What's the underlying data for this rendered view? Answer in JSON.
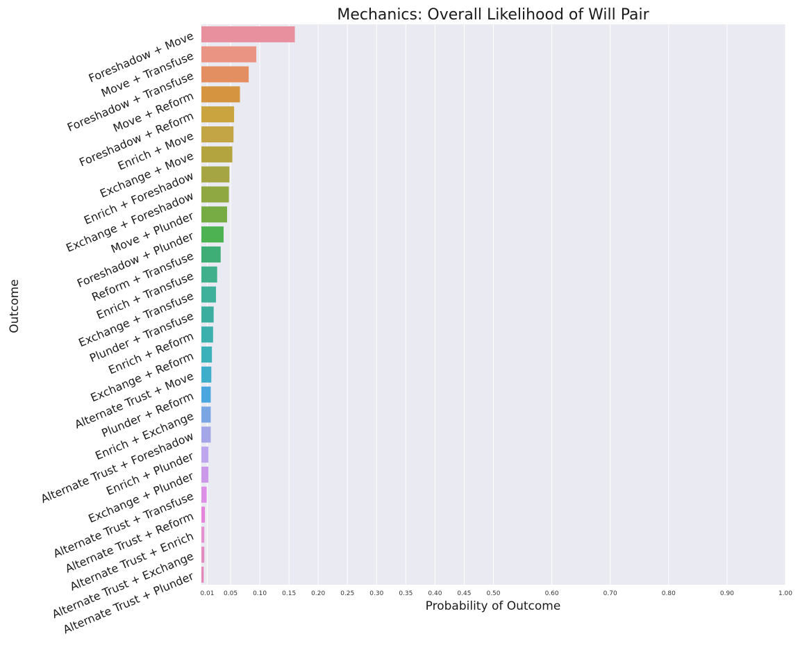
{
  "chart_data": {
    "type": "bar",
    "orientation": "horizontal",
    "title": "Mechanics: Overall Likelihood of Will Pair",
    "xlabel": "Probability of Outcome",
    "ylabel": "Outcome",
    "xlim": [
      0,
      1.0
    ],
    "xticks": [
      0.01,
      0.05,
      0.1,
      0.15,
      0.2,
      0.25,
      0.3,
      0.35,
      0.4,
      0.45,
      0.5,
      0.6,
      0.7,
      0.8,
      0.9,
      1.0
    ],
    "xtick_labels": [
      "0.01",
      "0.05",
      "0.10",
      "0.15",
      "0.20",
      "0.25",
      "0.30",
      "0.35",
      "0.40",
      "0.45",
      "0.50",
      "0.60",
      "0.70",
      "0.80",
      "0.90",
      "1.00"
    ],
    "grid": true,
    "background_color": "#eaeaf2",
    "categories": [
      "Foreshadow + Move",
      "Move + Transfuse",
      "Foreshadow + Transfuse",
      "Move + Reform",
      "Foreshadow + Reform",
      "Enrich + Move",
      "Exchange + Move",
      "Enrich + Foreshadow",
      "Exchange + Foreshadow",
      "Move + Plunder",
      "Foreshadow + Plunder",
      "Reform + Transfuse",
      "Enrich + Transfuse",
      "Exchange + Transfuse",
      "Plunder + Transfuse",
      "Enrich + Reform",
      "Exchange + Reform",
      "Alternate Trust + Move",
      "Plunder + Reform",
      "Enrich + Exchange",
      "Alternate Trust + Foreshadow",
      "Enrich + Plunder",
      "Exchange + Plunder",
      "Alternate Trust + Transfuse",
      "Alternate Trust + Reform",
      "Alternate Trust + Enrich",
      "Alternate Trust + Exchange",
      "Alternate Trust + Plunder"
    ],
    "values": [
      0.16,
      0.094,
      0.081,
      0.066,
      0.056,
      0.055,
      0.053,
      0.048,
      0.047,
      0.044,
      0.038,
      0.033,
      0.027,
      0.025,
      0.021,
      0.02,
      0.018,
      0.017,
      0.016,
      0.016,
      0.016,
      0.012,
      0.012,
      0.009,
      0.006,
      0.005,
      0.005,
      0.004
    ],
    "colors": [
      "#e8909e",
      "#ea9483",
      "#e48f62",
      "#d49440",
      "#c9a43f",
      "#c3a545",
      "#b4a43f",
      "#a5a544",
      "#90a842",
      "#77ac45",
      "#4cb252",
      "#3eae76",
      "#3fb08b",
      "#3fb19b",
      "#3cae9f",
      "#3bb0ad",
      "#3bb1b9",
      "#3eaecb",
      "#4aa6df",
      "#7aa7e4",
      "#a5a6e7",
      "#bea6ee",
      "#cb98ea",
      "#dd8ee6",
      "#e485db",
      "#e48fce",
      "#e38cc2",
      "#e488ba"
    ]
  }
}
